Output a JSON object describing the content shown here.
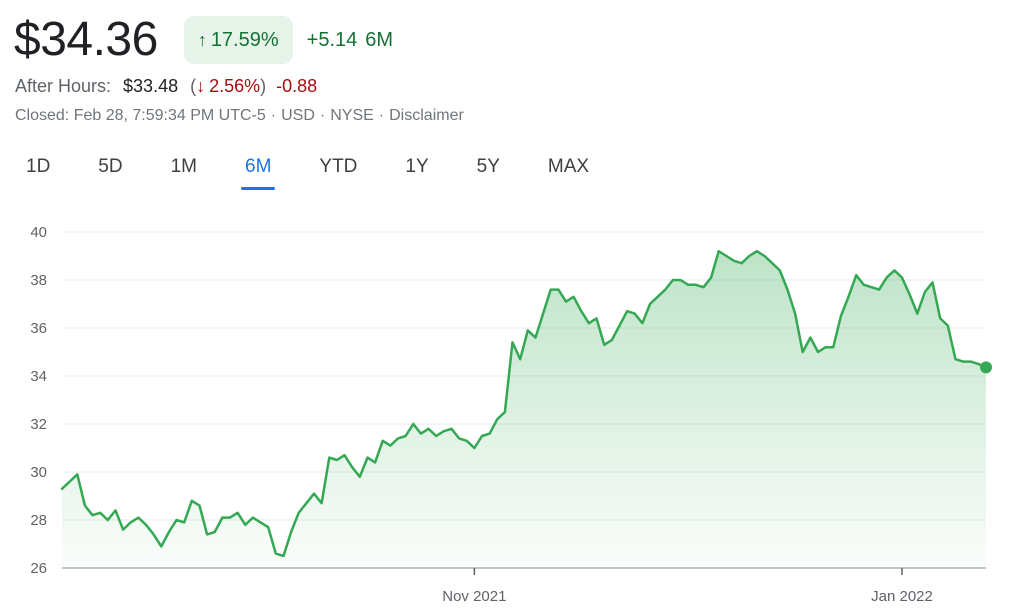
{
  "quote": {
    "price": "$34.36",
    "change_pct": "17.59%",
    "change_abs": "+5.14",
    "period": "6M",
    "after_hours_label": "After Hours:",
    "after_hours_price": "$33.48",
    "after_hours_pct": "2.56%",
    "after_hours_abs": "-0.88",
    "closed_info": "Closed: Feb 28, 7:59:34 PM UTC-5",
    "currency": "USD",
    "exchange": "NYSE",
    "disclaimer": "Disclaimer"
  },
  "ranges": [
    "1D",
    "5D",
    "1M",
    "6M",
    "YTD",
    "1Y",
    "5Y",
    "MAX"
  ],
  "active_range": "6M",
  "colors": {
    "up": "#137333",
    "down": "#a50e0e",
    "line": "#34a853",
    "accent": "#1a73e8"
  },
  "icons": {
    "up": "arrow-up-icon",
    "down": "arrow-down-icon"
  },
  "chart_data": {
    "type": "area",
    "x_labels": [
      "Nov 2021",
      "Jan 2022"
    ],
    "x_label_index": [
      54,
      110
    ],
    "y_ticks": [
      26,
      28,
      30,
      32,
      34,
      36,
      38,
      40
    ],
    "ylim": [
      26,
      40
    ],
    "grid": true,
    "last_point_marker": true,
    "values": [
      29.3,
      29.6,
      29.9,
      28.6,
      28.2,
      28.3,
      28.0,
      28.4,
      27.6,
      27.9,
      28.1,
      27.8,
      27.4,
      26.9,
      27.5,
      28.0,
      27.9,
      28.8,
      28.6,
      27.4,
      27.5,
      28.1,
      28.1,
      28.3,
      27.8,
      28.1,
      27.9,
      27.7,
      26.6,
      26.5,
      27.5,
      28.3,
      28.7,
      29.1,
      28.7,
      30.6,
      30.5,
      30.7,
      30.2,
      29.8,
      30.6,
      30.4,
      31.3,
      31.1,
      31.4,
      31.5,
      32.0,
      31.6,
      31.8,
      31.5,
      31.7,
      31.8,
      31.4,
      31.3,
      31.0,
      31.5,
      31.6,
      32.2,
      32.5,
      35.4,
      34.7,
      35.9,
      35.6,
      36.6,
      37.6,
      37.6,
      37.1,
      37.3,
      36.7,
      36.2,
      36.4,
      35.3,
      35.5,
      36.1,
      36.7,
      36.6,
      36.2,
      37.0,
      37.3,
      37.6,
      38.0,
      38.0,
      37.8,
      37.8,
      37.7,
      38.1,
      39.2,
      39.0,
      38.8,
      38.7,
      39.0,
      39.2,
      39.0,
      38.7,
      38.4,
      37.6,
      36.6,
      35.0,
      35.6,
      35.0,
      35.2,
      35.2,
      36.5,
      37.3,
      38.2,
      37.8,
      37.7,
      37.6,
      38.1,
      38.4,
      38.1,
      37.4,
      36.6,
      37.5,
      37.9,
      36.4,
      36.1,
      34.7,
      34.6,
      34.6,
      34.5,
      34.36
    ]
  }
}
